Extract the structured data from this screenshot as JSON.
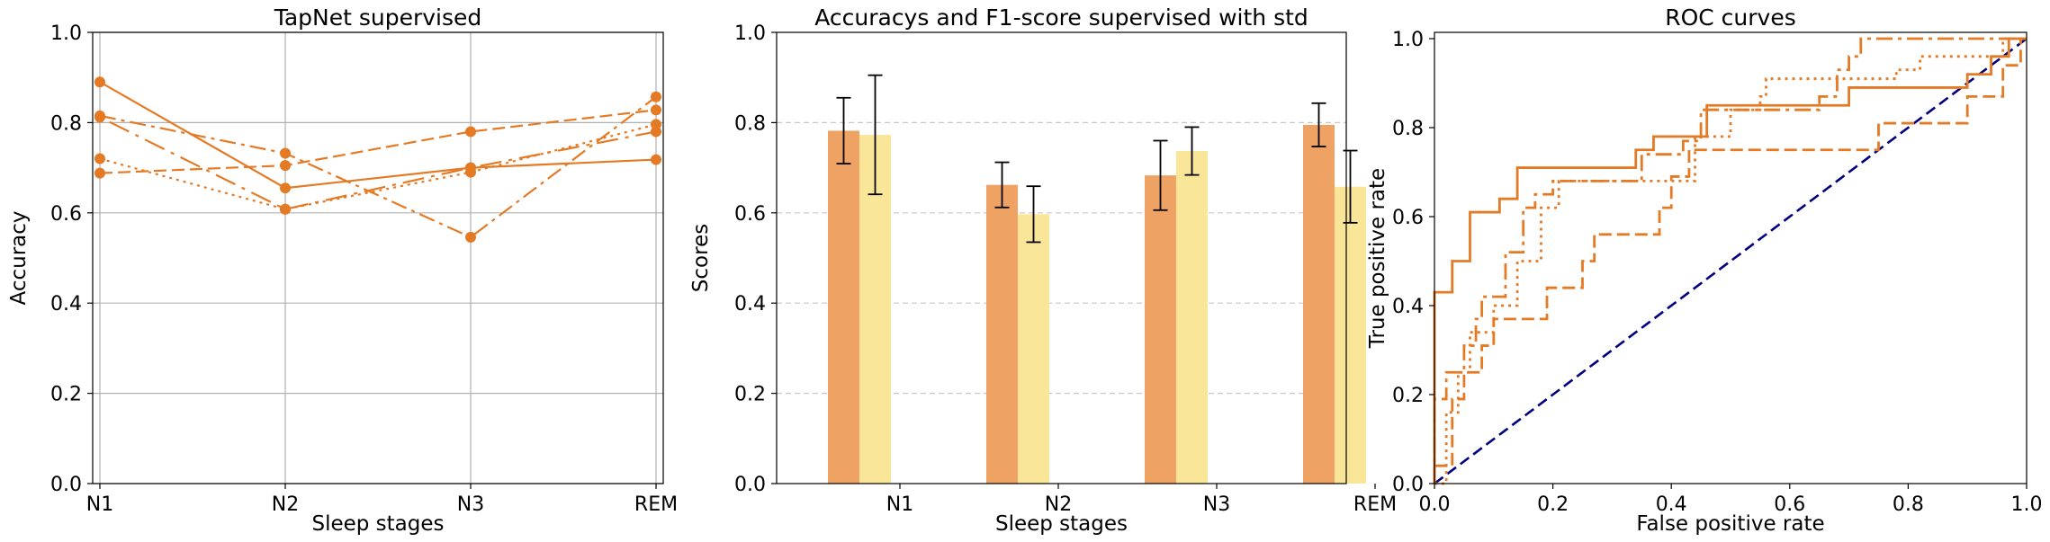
{
  "chart_data": [
    {
      "type": "line",
      "title": "TapNet supervised",
      "xlabel": "Sleep stages",
      "ylabel": "Accuracy",
      "categories": [
        "N1",
        "N2",
        "N3",
        "REM"
      ],
      "ylim": [
        0,
        1.0
      ],
      "yticks": [
        0.0,
        0.2,
        0.4,
        0.6,
        0.8,
        1.0
      ],
      "grid": "both",
      "color": "#e57a25",
      "series": [
        {
          "style": "solid",
          "values": [
            0.89,
            0.655,
            0.7,
            0.718
          ]
        },
        {
          "style": "dashed",
          "values": [
            0.688,
            0.705,
            0.78,
            0.828
          ]
        },
        {
          "style": "dashdot",
          "values": [
            0.815,
            0.732,
            0.546,
            0.857
          ]
        },
        {
          "style": "dotted",
          "values": [
            0.72,
            0.608,
            0.69,
            0.796
          ]
        },
        {
          "style": "loosedashdot",
          "values": [
            0.812,
            0.608,
            0.7,
            0.78
          ]
        }
      ]
    },
    {
      "type": "bar",
      "title": "Accuracys and F1-score supervised with std",
      "xlabel": "Sleep stages",
      "ylabel": "Scores",
      "categories": [
        "N1",
        "N2",
        "N3",
        "REM"
      ],
      "ylim": [
        0,
        1.0
      ],
      "yticks": [
        0.0,
        0.2,
        0.4,
        0.6,
        0.8,
        1.0
      ],
      "grid": "y-dashed",
      "series": [
        {
          "color": "#eea364",
          "values": [
            0.782,
            0.662,
            0.683,
            0.795
          ],
          "std": [
            0.073,
            0.05,
            0.077,
            0.048
          ]
        },
        {
          "color": "#fae699",
          "values": [
            0.773,
            0.597,
            0.737,
            0.658
          ],
          "std": [
            0.132,
            0.062,
            0.053,
            0.08
          ]
        }
      ]
    },
    {
      "type": "line",
      "title": "ROC curves",
      "xlabel": "False positive rate",
      "ylabel": "True positive rate",
      "xlim": [
        0,
        1.0
      ],
      "ylim": [
        0,
        1.0
      ],
      "xticks": [
        0.0,
        0.2,
        0.4,
        0.6,
        0.8,
        1.0
      ],
      "yticks": [
        0.0,
        0.2,
        0.4,
        0.6,
        0.8,
        1.0
      ],
      "grid": "none",
      "color": "#e57a25",
      "reference_color": "#000080",
      "series": [
        {
          "style": "solid",
          "points": [
            [
              0,
              0
            ],
            [
              0,
              0.43
            ],
            [
              0.03,
              0.43
            ],
            [
              0.03,
              0.5
            ],
            [
              0.06,
              0.5
            ],
            [
              0.06,
              0.61
            ],
            [
              0.11,
              0.61
            ],
            [
              0.11,
              0.64
            ],
            [
              0.14,
              0.64
            ],
            [
              0.14,
              0.71
            ],
            [
              0.34,
              0.71
            ],
            [
              0.34,
              0.75
            ],
            [
              0.37,
              0.75
            ],
            [
              0.37,
              0.78
            ],
            [
              0.46,
              0.78
            ],
            [
              0.46,
              0.85
            ],
            [
              0.7,
              0.85
            ],
            [
              0.7,
              0.89
            ],
            [
              0.9,
              0.89
            ],
            [
              0.9,
              0.92
            ],
            [
              0.94,
              0.92
            ],
            [
              0.94,
              0.96
            ],
            [
              0.97,
              0.96
            ],
            [
              0.97,
              1.0
            ],
            [
              1.0,
              1.0
            ]
          ]
        },
        {
          "style": "dashed",
          "points": [
            [
              0,
              0
            ],
            [
              0,
              0.04
            ],
            [
              0.03,
              0.04
            ],
            [
              0.03,
              0.19
            ],
            [
              0.05,
              0.19
            ],
            [
              0.05,
              0.25
            ],
            [
              0.08,
              0.25
            ],
            [
              0.08,
              0.31
            ],
            [
              0.1,
              0.31
            ],
            [
              0.1,
              0.37
            ],
            [
              0.19,
              0.37
            ],
            [
              0.19,
              0.44
            ],
            [
              0.25,
              0.44
            ],
            [
              0.25,
              0.5
            ],
            [
              0.27,
              0.5
            ],
            [
              0.27,
              0.56
            ],
            [
              0.38,
              0.56
            ],
            [
              0.38,
              0.62
            ],
            [
              0.4,
              0.62
            ],
            [
              0.4,
              0.69
            ],
            [
              0.43,
              0.69
            ],
            [
              0.43,
              0.75
            ],
            [
              0.75,
              0.75
            ],
            [
              0.75,
              0.81
            ],
            [
              0.9,
              0.81
            ],
            [
              0.9,
              0.87
            ],
            [
              0.96,
              0.87
            ],
            [
              0.96,
              0.94
            ],
            [
              0.99,
              0.94
            ],
            [
              0.99,
              1.0
            ],
            [
              1.0,
              1.0
            ]
          ]
        },
        {
          "style": "dashdot",
          "points": [
            [
              0,
              0
            ],
            [
              0,
              0.19
            ],
            [
              0.02,
              0.19
            ],
            [
              0.02,
              0.25
            ],
            [
              0.05,
              0.25
            ],
            [
              0.05,
              0.31
            ],
            [
              0.07,
              0.31
            ],
            [
              0.07,
              0.37
            ],
            [
              0.08,
              0.37
            ],
            [
              0.08,
              0.42
            ],
            [
              0.12,
              0.42
            ],
            [
              0.12,
              0.52
            ],
            [
              0.15,
              0.52
            ],
            [
              0.15,
              0.62
            ],
            [
              0.17,
              0.62
            ],
            [
              0.17,
              0.65
            ],
            [
              0.2,
              0.65
            ],
            [
              0.2,
              0.68
            ],
            [
              0.35,
              0.68
            ],
            [
              0.35,
              0.74
            ],
            [
              0.42,
              0.74
            ],
            [
              0.42,
              0.77
            ],
            [
              0.45,
              0.77
            ],
            [
              0.45,
              0.84
            ],
            [
              0.65,
              0.84
            ],
            [
              0.65,
              0.87
            ],
            [
              0.68,
              0.87
            ],
            [
              0.68,
              0.93
            ],
            [
              0.7,
              0.93
            ],
            [
              0.7,
              0.96
            ],
            [
              0.72,
              0.96
            ],
            [
              0.72,
              1.0
            ],
            [
              1.0,
              1.0
            ]
          ]
        },
        {
          "style": "dotted",
          "points": [
            [
              0,
              0
            ],
            [
              0.02,
              0
            ],
            [
              0.02,
              0.16
            ],
            [
              0.04,
              0.16
            ],
            [
              0.04,
              0.25
            ],
            [
              0.06,
              0.25
            ],
            [
              0.06,
              0.34
            ],
            [
              0.1,
              0.34
            ],
            [
              0.1,
              0.4
            ],
            [
              0.14,
              0.4
            ],
            [
              0.14,
              0.5
            ],
            [
              0.18,
              0.5
            ],
            [
              0.18,
              0.62
            ],
            [
              0.21,
              0.62
            ],
            [
              0.21,
              0.68
            ],
            [
              0.44,
              0.68
            ],
            [
              0.44,
              0.78
            ],
            [
              0.5,
              0.78
            ],
            [
              0.5,
              0.84
            ],
            [
              0.55,
              0.84
            ],
            [
              0.55,
              0.87
            ],
            [
              0.56,
              0.87
            ],
            [
              0.56,
              0.91
            ],
            [
              0.78,
              0.91
            ],
            [
              0.78,
              0.93
            ],
            [
              0.82,
              0.93
            ],
            [
              0.82,
              0.96
            ],
            [
              0.96,
              0.96
            ],
            [
              0.96,
              1.0
            ],
            [
              1.0,
              1.0
            ]
          ]
        }
      ],
      "reference": {
        "style": "dashed",
        "points": [
          [
            0,
            0
          ],
          [
            1,
            1
          ]
        ]
      }
    }
  ]
}
